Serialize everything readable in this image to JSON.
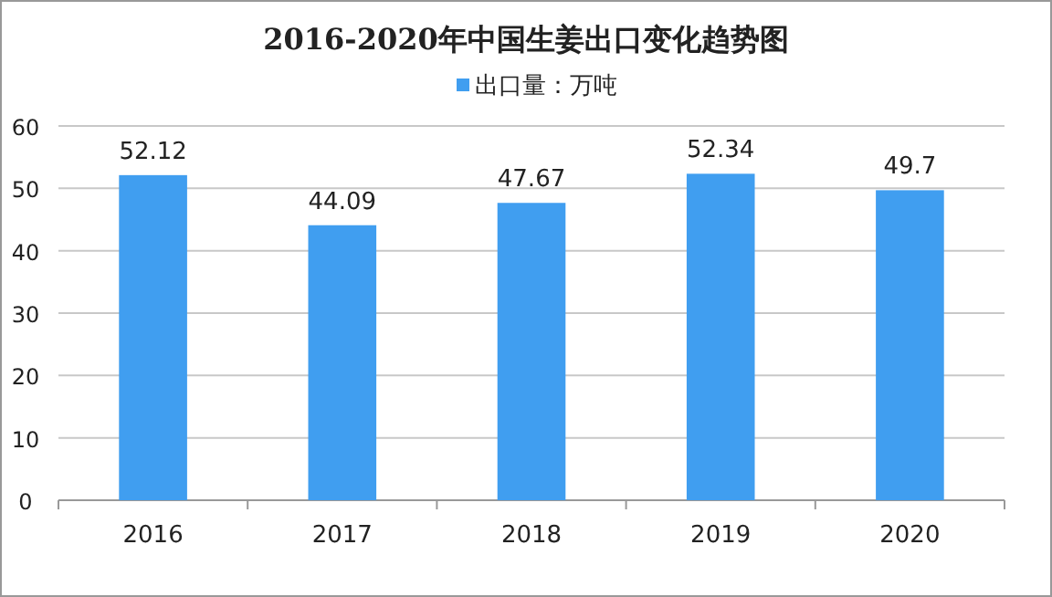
{
  "chart_data": {
    "type": "bar",
    "title": "2016-2020年中国生姜出口变化趋势图",
    "categories": [
      "2016",
      "2017",
      "2018",
      "2019",
      "2020"
    ],
    "series": [
      {
        "name": "出口量：万吨",
        "color": "#409ef0",
        "values": [
          52.12,
          44.09,
          47.67,
          52.34,
          49.7
        ]
      }
    ],
    "ylim": [
      0,
      60
    ],
    "yticks": [
      0,
      10,
      20,
      30,
      40,
      50,
      60
    ],
    "grid": "y",
    "legend": "top",
    "data_labels": true
  }
}
